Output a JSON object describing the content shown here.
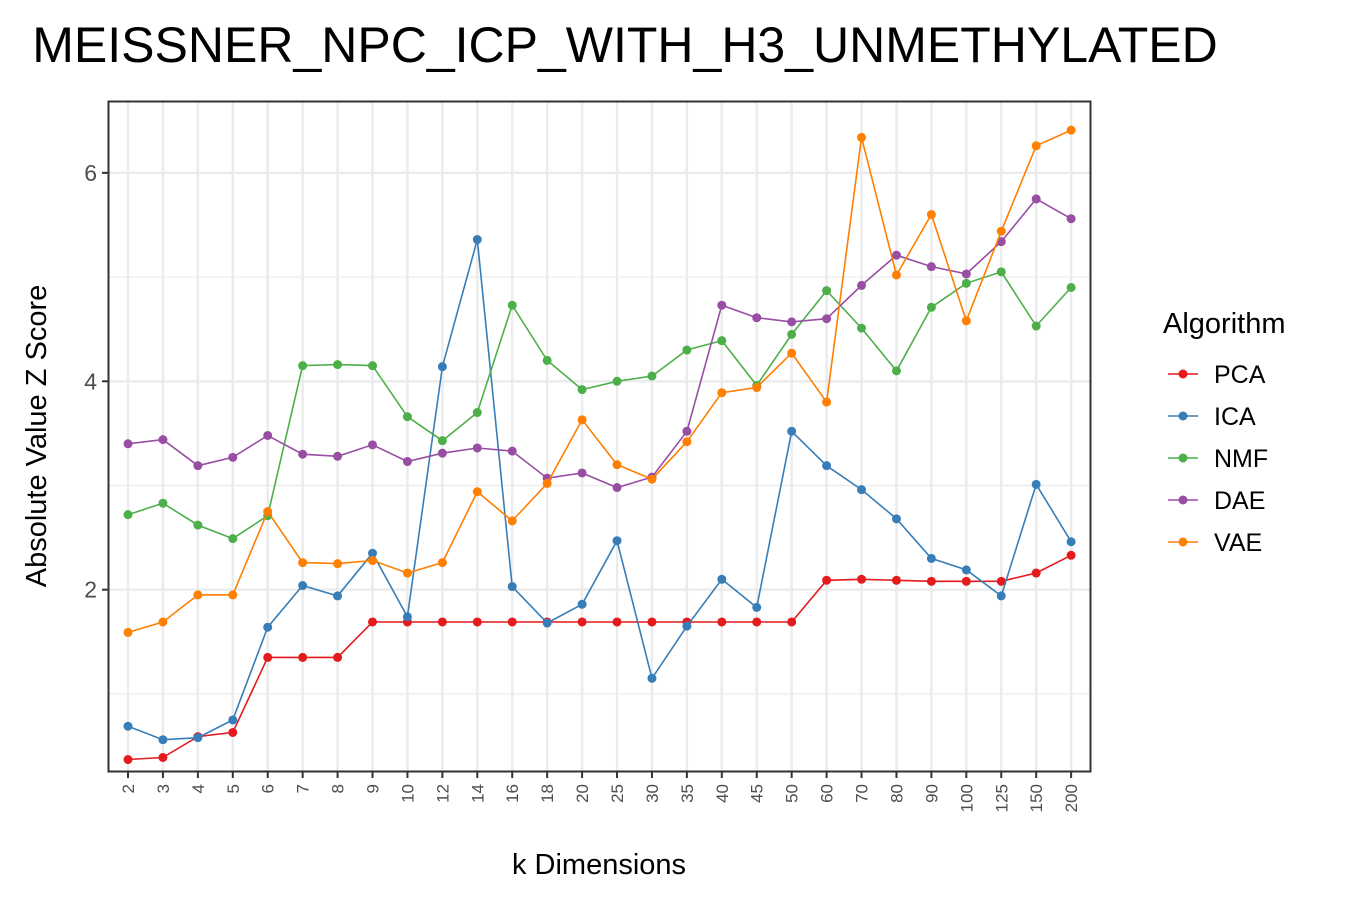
{
  "chart_data": {
    "type": "line",
    "title": "MEISSNER_NPC_ICP_WITH_H3_UNMETHYLATED",
    "xlabel": "k Dimensions",
    "ylabel": "Absolute Value Z Score",
    "categories": [
      "2",
      "3",
      "4",
      "5",
      "6",
      "7",
      "8",
      "9",
      "10",
      "12",
      "14",
      "16",
      "18",
      "20",
      "25",
      "30",
      "35",
      "40",
      "45",
      "50",
      "60",
      "70",
      "80",
      "90",
      "100",
      "125",
      "150",
      "200"
    ],
    "ylim": [
      0.26,
      6.68
    ],
    "yticks": [
      2,
      4,
      6
    ],
    "grid": true,
    "legend_title": "Algorithm",
    "legend_position": "right",
    "series": [
      {
        "name": "PCA",
        "color": "#e41a1c",
        "values": [
          0.37,
          0.39,
          0.59,
          0.63,
          1.35,
          1.35,
          1.35,
          1.69,
          1.69,
          1.69,
          1.69,
          1.69,
          1.69,
          1.69,
          1.69,
          1.69,
          1.69,
          1.69,
          1.69,
          1.69,
          2.09,
          2.1,
          2.09,
          2.08,
          2.08,
          2.08,
          2.16,
          2.33
        ]
      },
      {
        "name": "ICA",
        "color": "#377eb8",
        "values": [
          0.69,
          0.56,
          0.58,
          0.75,
          1.64,
          2.04,
          1.94,
          2.35,
          1.74,
          4.14,
          5.36,
          2.03,
          1.68,
          1.86,
          2.47,
          1.15,
          1.65,
          2.1,
          1.83,
          3.52,
          3.19,
          2.96,
          2.68,
          2.3,
          2.19,
          1.94,
          3.01,
          2.46
        ]
      },
      {
        "name": "NMF",
        "color": "#4daf4a",
        "values": [
          2.72,
          2.83,
          2.62,
          2.49,
          2.71,
          4.15,
          4.16,
          4.15,
          3.66,
          3.43,
          3.7,
          4.73,
          4.2,
          3.92,
          4.0,
          4.05,
          4.3,
          4.39,
          3.96,
          4.45,
          4.87,
          4.51,
          4.1,
          4.71,
          4.94,
          5.05,
          4.53,
          4.9
        ]
      },
      {
        "name": "DAE",
        "color": "#984ea3",
        "values": [
          3.4,
          3.44,
          3.19,
          3.27,
          3.48,
          3.3,
          3.28,
          3.39,
          3.23,
          3.31,
          3.36,
          3.33,
          3.07,
          3.12,
          2.98,
          3.08,
          3.52,
          4.73,
          4.61,
          4.57,
          4.6,
          4.92,
          5.21,
          5.1,
          5.03,
          5.34,
          5.75,
          5.56
        ]
      },
      {
        "name": "VAE",
        "color": "#ff7f00",
        "values": [
          1.59,
          1.69,
          1.95,
          1.95,
          2.75,
          2.26,
          2.25,
          2.28,
          2.16,
          2.26,
          2.94,
          2.66,
          3.02,
          3.63,
          3.2,
          3.06,
          3.42,
          3.89,
          3.94,
          4.27,
          3.8,
          6.34,
          5.02,
          5.6,
          4.58,
          5.44,
          6.26,
          6.41
        ]
      }
    ]
  }
}
